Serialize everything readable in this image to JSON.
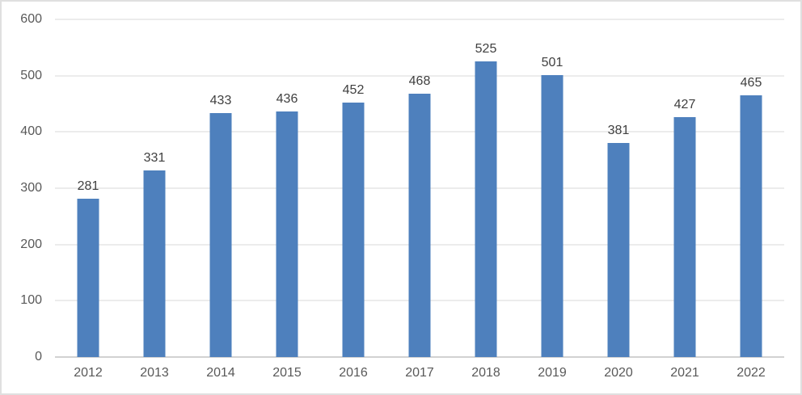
{
  "chart_data": {
    "type": "bar",
    "categories": [
      "2012",
      "2013",
      "2014",
      "2015",
      "2016",
      "2017",
      "2018",
      "2019",
      "2020",
      "2021",
      "2022"
    ],
    "values": [
      281,
      331,
      433,
      436,
      452,
      468,
      525,
      501,
      381,
      427,
      465
    ],
    "title": "",
    "xlabel": "",
    "ylabel": "",
    "ylim": [
      0,
      600
    ],
    "ytick_step": 100,
    "yticks": [
      0,
      100,
      200,
      300,
      400,
      500,
      600
    ],
    "grid": true,
    "legend": false,
    "colors": {
      "bar": "#4e80bd",
      "value_label": "#404040",
      "axis_label": "#595959",
      "gridline": "#d9d9d9",
      "frame_border": "#e0e0e0",
      "background": "#ffffff"
    }
  }
}
